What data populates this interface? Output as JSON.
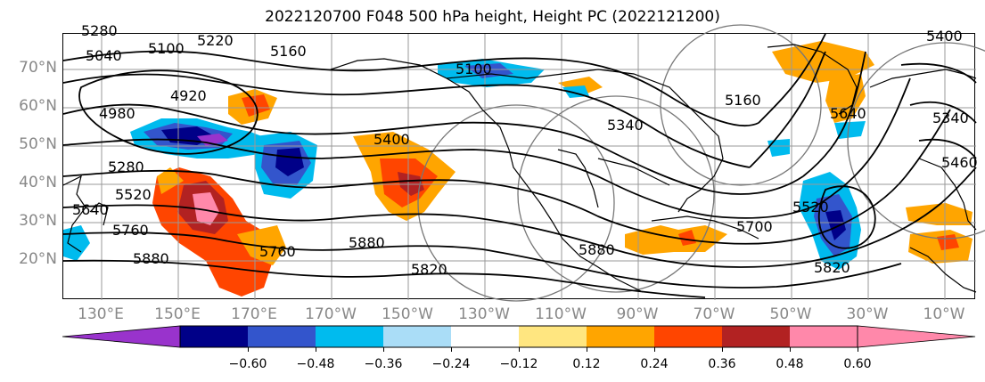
{
  "title": "2022120700 F048 500 hPa height, Height PC (2022121200)",
  "lat_labels": [
    "70°N",
    "60°N",
    "50°N",
    "40°N",
    "30°N",
    "20°N"
  ],
  "lon_labels": [
    "130°E",
    "150°E",
    "170°E",
    "170°W",
    "150°W",
    "130°W",
    "110°W",
    "90°W",
    "70°W",
    "50°W",
    "30°W",
    "10°W"
  ],
  "colorbar": {
    "ticks": [
      "−0.60",
      "−0.48",
      "−0.36",
      "−0.24",
      "−0.12",
      "0.12",
      "0.24",
      "0.36",
      "0.48",
      "0.60"
    ],
    "colors": [
      "#9933cc",
      "#000088",
      "#3355cc",
      "#00bbee",
      "#aaddf7",
      "#ffffff",
      "#ffe680",
      "#ffa500",
      "#ff4500",
      "#b22222",
      "#ff88aa",
      "#ff88aa"
    ]
  },
  "contour_labels": [
    "5280",
    "5100",
    "5220",
    "5040",
    "5160",
    "4980",
    "4920",
    "5280",
    "5520",
    "5640",
    "5760",
    "5880",
    "5760",
    "5400",
    "5880",
    "5820",
    "5100",
    "5340",
    "5160",
    "5880",
    "5700",
    "5520",
    "5820",
    "5640",
    "5400",
    "5340",
    "5460"
  ]
}
